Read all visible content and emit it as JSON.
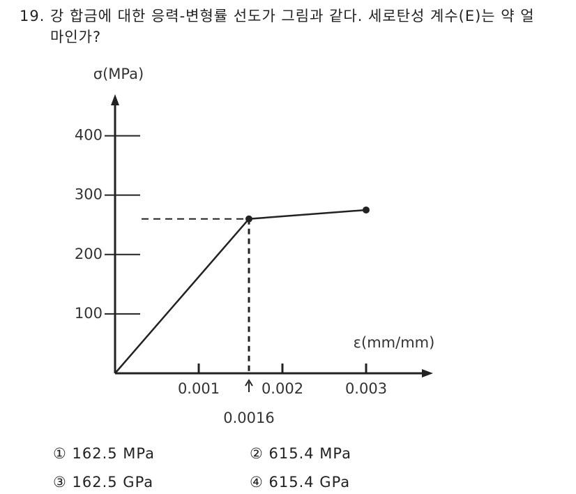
{
  "question": {
    "number": "19.",
    "text": "강 합금에 대한 응력-변형률 선도가 그림과 같다. 세로탄성 계수(E)는 약 얼마인가?"
  },
  "chart_data": {
    "type": "line",
    "ylabel": "σ(MPa)",
    "xlabel": "ε(mm/mm)",
    "x": [
      0,
      0.0016,
      0.003
    ],
    "values": [
      0,
      260,
      275
    ],
    "color": "#222222",
    "xlim": [
      0,
      0.0038
    ],
    "ylim": [
      0,
      470
    ],
    "xticks": [
      0.001,
      0.002,
      0.003
    ],
    "yticks": [
      100,
      200,
      300,
      400
    ],
    "annotations": [
      {
        "text": "0.0016",
        "x": 0.0016
      }
    ]
  },
  "options": [
    "① 162.5 MPa",
    "② 615.4 MPa",
    "③ 162.5 GPa",
    "④ 615.4 GPa"
  ]
}
